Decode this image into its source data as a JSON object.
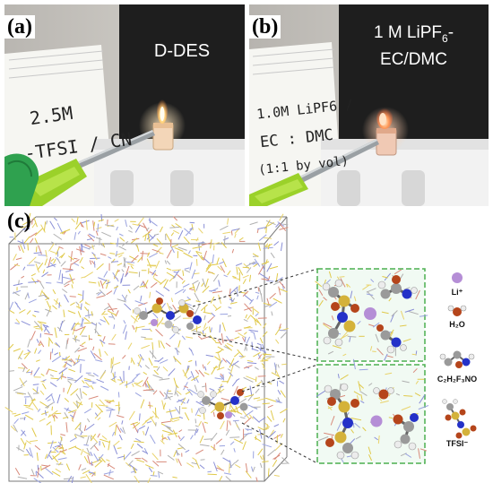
{
  "panels": {
    "a": {
      "label": "(a)",
      "caption": "D-DES",
      "note_lines": [
        "2.5M",
        "-TFSI / CN"
      ]
    },
    "b": {
      "label": "(b)",
      "caption_line1": "1 M LiPF",
      "caption_sub": "6",
      "caption_dash": "-",
      "caption_line2": "EC/DMC",
      "note_lines": [
        "1.0M LiPF6 /",
        "EC : DMC",
        "(1:1 by vol)"
      ]
    },
    "c": {
      "label": "(c)"
    }
  },
  "legend": {
    "li": "Li⁺",
    "water": "H₂O",
    "acetamide": "C₂H₂F₃NO",
    "tfsi": "TFSI⁻"
  },
  "colors": {
    "li": "#b58ed6",
    "oxygen": "#b5451b",
    "nitrogen": "#2431c8",
    "sulfur": "#d4b23a",
    "carbon": "#9a9a9a",
    "hydrogen": "#ececec",
    "zoom_border": "#4caf50"
  }
}
